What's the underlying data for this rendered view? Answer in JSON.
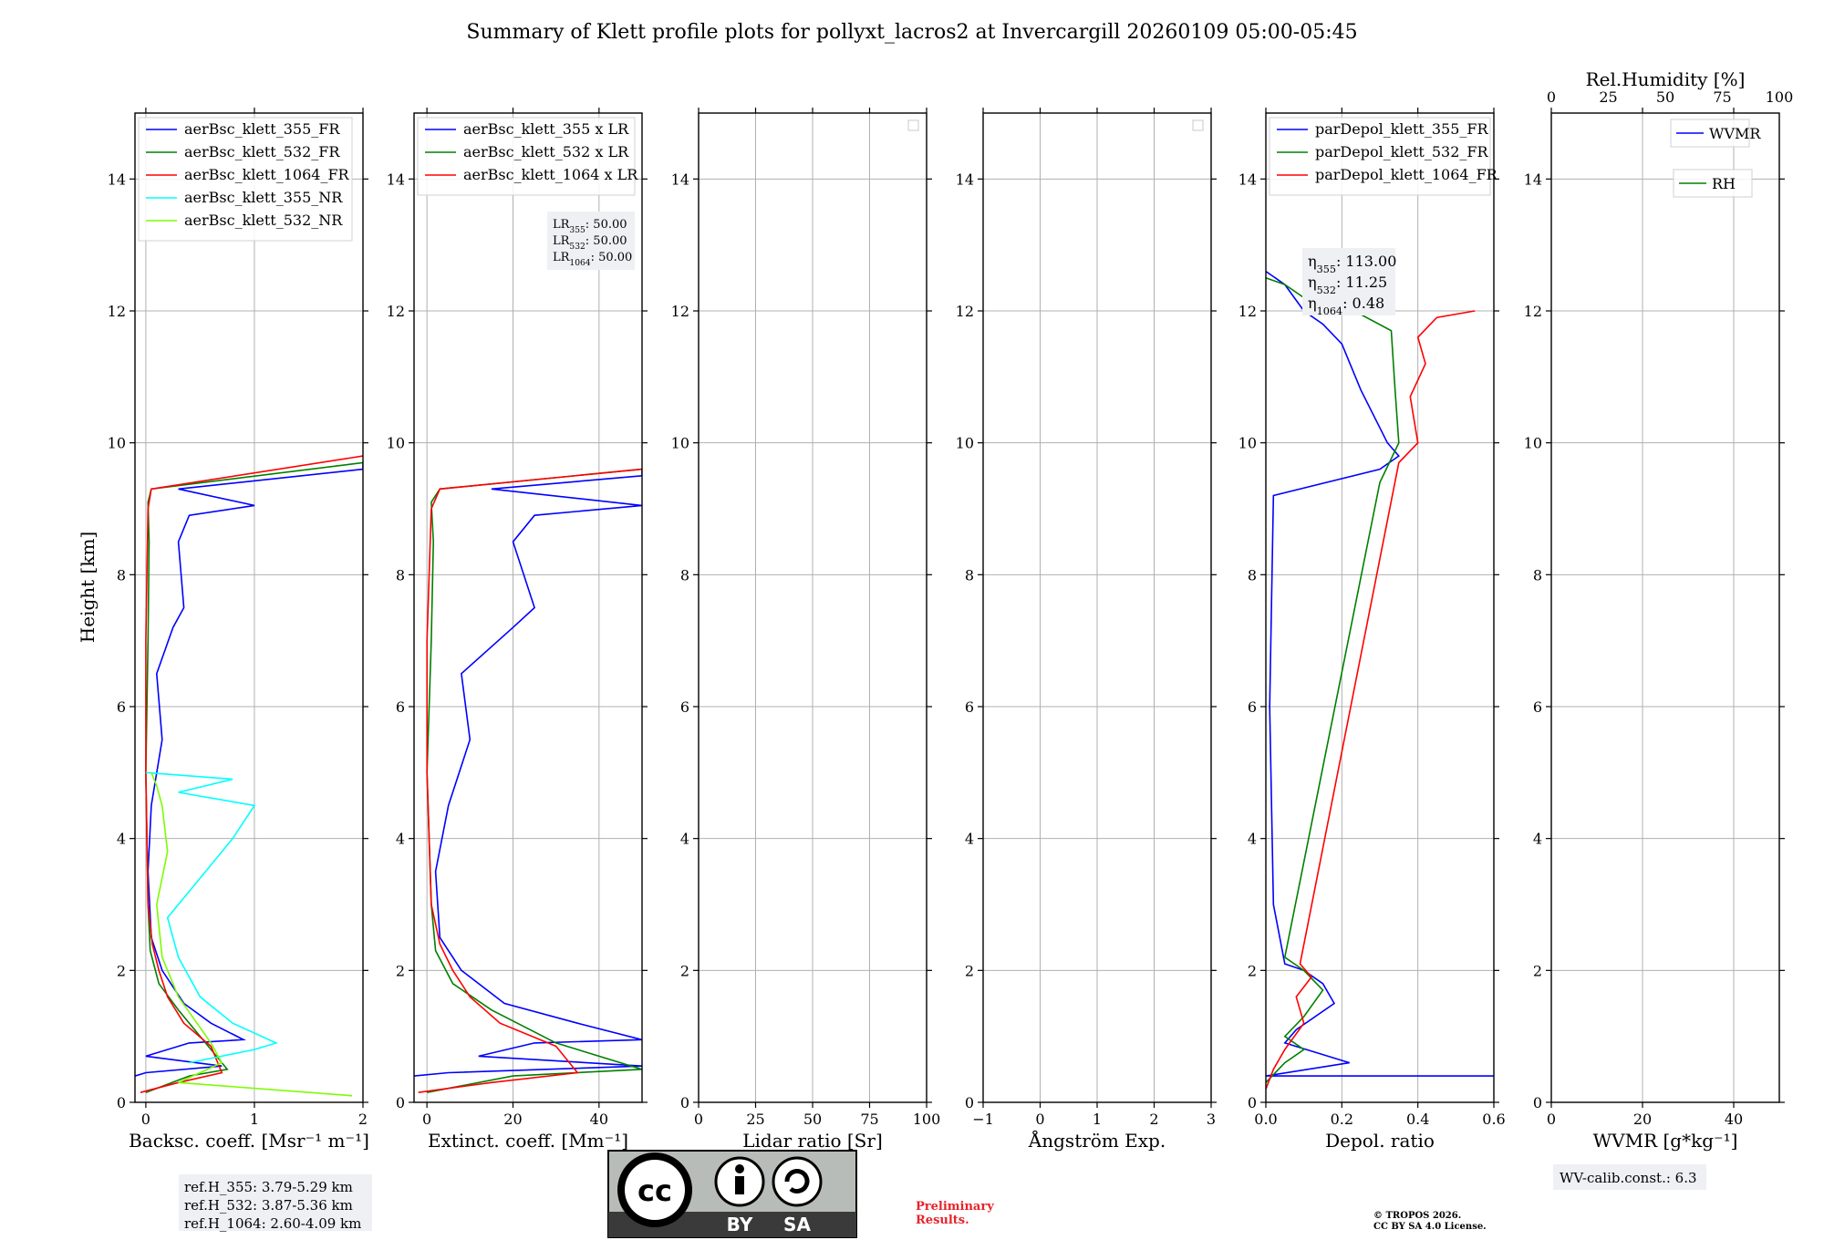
{
  "title": "Summary of Klett profile plots for pollyxt_lacros2 at Invercargill 20260109 05:00-05:45",
  "y_label": "Height [km]",
  "colors": {
    "c355": "#0000ff",
    "c532": "#008000",
    "c1064": "#ff0000",
    "c355nr": "#00ffff",
    "c532nr": "#7cfc00"
  },
  "chart_data": [
    {
      "type": "line",
      "panel": "backscatter",
      "xlabel": "Backsc. coeff. [Msr⁻¹ m⁻¹]",
      "xlim": [
        -0.1,
        2.0
      ],
      "xticks": [
        0,
        1,
        2
      ],
      "xtick_labels": [
        "0",
        "1",
        "2"
      ],
      "ylim": [
        0,
        15
      ],
      "yticks": [
        0,
        2,
        4,
        6,
        8,
        10,
        12,
        14
      ],
      "ytick_labels": [
        "0",
        "2",
        "4",
        "6",
        "8",
        "10",
        "12",
        "14"
      ],
      "legend": [
        "aerBsc_klett_355_FR",
        "aerBsc_klett_532_FR",
        "aerBsc_klett_1064_FR",
        "aerBsc_klett_355_NR",
        "aerBsc_klett_532_NR"
      ],
      "series": [
        {
          "name": "aerBsc_klett_355_FR",
          "color": "c355",
          "x": [
            -0.1,
            0.0,
            0.7,
            0.0,
            0.4,
            0.9,
            0.6,
            0.35,
            0.15,
            0.05,
            0.02,
            0.05,
            0.15,
            0.1,
            0.25,
            0.35,
            0.3,
            0.4,
            1.0,
            0.3,
            2.0,
            2.0
          ],
          "y": [
            0.4,
            0.45,
            0.55,
            0.7,
            0.9,
            0.95,
            1.2,
            1.5,
            2.0,
            2.5,
            3.5,
            4.5,
            5.5,
            6.5,
            7.2,
            7.5,
            8.5,
            8.9,
            9.05,
            9.3,
            9.6,
            9.7
          ]
        },
        {
          "name": "aerBsc_klett_532_FR",
          "color": "c532",
          "x": [
            0.0,
            0.4,
            0.75,
            0.55,
            0.3,
            0.12,
            0.04,
            0.02,
            0.0,
            0.02,
            0.03,
            0.02,
            0.05,
            2.0
          ],
          "y": [
            0.15,
            0.4,
            0.5,
            0.9,
            1.4,
            1.8,
            2.3,
            3.0,
            5.0,
            7.0,
            8.5,
            9.1,
            9.3,
            9.7
          ]
        },
        {
          "name": "aerBsc_klett_1064_FR",
          "color": "c1064",
          "x": [
            -0.05,
            0.3,
            0.7,
            0.6,
            0.35,
            0.2,
            0.12,
            0.06,
            0.02,
            0.0,
            0.0,
            0.02,
            0.05,
            2.0
          ],
          "y": [
            0.15,
            0.3,
            0.45,
            0.85,
            1.2,
            1.6,
            2.0,
            2.4,
            3.0,
            5.0,
            7.0,
            9.0,
            9.3,
            9.8
          ]
        },
        {
          "name": "aerBsc_klett_355_NR",
          "color": "c355nr",
          "x": [
            0.4,
            1.0,
            1.2,
            0.8,
            0.5,
            0.3,
            0.2,
            0.5,
            0.8,
            1.0,
            0.3,
            0.8,
            0.0
          ],
          "y": [
            0.6,
            0.8,
            0.9,
            1.2,
            1.6,
            2.2,
            2.8,
            3.4,
            4.0,
            4.5,
            4.7,
            4.9,
            5.0
          ]
        },
        {
          "name": "aerBsc_klett_532_NR",
          "color": "c532nr",
          "x": [
            1.9,
            0.3,
            0.5,
            0.7,
            0.6,
            0.3,
            0.15,
            0.1,
            0.2,
            0.15,
            0.1,
            0.05
          ],
          "y": [
            0.1,
            0.3,
            0.45,
            0.6,
            0.9,
            1.6,
            2.2,
            3.0,
            3.8,
            4.5,
            4.8,
            5.0
          ]
        }
      ],
      "annotation": [
        "ref.H_355: 3.79-5.29 km",
        "ref.H_532: 3.87-5.36 km",
        "ref.H_1064: 2.60-4.09 km"
      ]
    },
    {
      "type": "line",
      "panel": "extinction",
      "xlabel": "Extinct. coeff. [Mm⁻¹]",
      "xlim": [
        -3,
        50
      ],
      "xticks": [
        0,
        20,
        40
      ],
      "xtick_labels": [
        "0",
        "20",
        "40"
      ],
      "ylim": [
        0,
        15
      ],
      "yticks": [
        0,
        2,
        4,
        6,
        8,
        10,
        12,
        14
      ],
      "ytick_labels": [
        "0",
        "2",
        "4",
        "6",
        "8",
        "10",
        "12",
        "14"
      ],
      "legend": [
        "aerBsc_klett_355 x LR",
        "aerBsc_klett_532 x LR",
        "aerBsc_klett_1064 x LR"
      ],
      "series": [
        {
          "name": "aerBsc_klett_355 x LR",
          "color": "c355",
          "x": [
            -3,
            5,
            50,
            12,
            25,
            50,
            35,
            18,
            8,
            3,
            2,
            5,
            10,
            8,
            20,
            25,
            20,
            25,
            50,
            15,
            50,
            50
          ],
          "y": [
            0.4,
            0.45,
            0.55,
            0.7,
            0.9,
            0.95,
            1.2,
            1.5,
            2.0,
            2.5,
            3.5,
            4.5,
            5.5,
            6.5,
            7.2,
            7.5,
            8.5,
            8.9,
            9.05,
            9.3,
            9.5,
            9.6
          ]
        },
        {
          "name": "aerBsc_klett_532 x LR",
          "color": "c532",
          "x": [
            0,
            20,
            50,
            30,
            15,
            6,
            2,
            1,
            0,
            1,
            1.5,
            1,
            3,
            50
          ],
          "y": [
            0.15,
            0.4,
            0.5,
            0.9,
            1.4,
            1.8,
            2.3,
            3.0,
            5.0,
            7.0,
            8.5,
            9.1,
            9.3,
            9.6
          ]
        },
        {
          "name": "aerBsc_klett_1064 x LR",
          "color": "c1064",
          "x": [
            -2,
            15,
            35,
            30,
            17,
            10,
            6,
            3,
            1,
            0,
            0,
            1,
            3,
            50
          ],
          "y": [
            0.15,
            0.3,
            0.45,
            0.85,
            1.2,
            1.6,
            2.0,
            2.4,
            3.0,
            5.0,
            7.0,
            9.0,
            9.3,
            9.6
          ]
        }
      ],
      "annotation": [
        "LR355: 50.00",
        "LR532: 50.00",
        "LR1064: 50.00"
      ]
    },
    {
      "type": "line",
      "panel": "lidar_ratio",
      "xlabel": "Lidar ratio [Sr]",
      "xlim": [
        0,
        100
      ],
      "xticks": [
        0,
        25,
        50,
        75,
        100
      ],
      "xtick_labels": [
        "0",
        "25",
        "50",
        "75",
        "100"
      ],
      "ylim": [
        0,
        15
      ],
      "yticks": [
        0,
        2,
        4,
        6,
        8,
        10,
        12,
        14
      ],
      "ytick_labels": [
        "0",
        "2",
        "4",
        "6",
        "8",
        "10",
        "12",
        "14"
      ],
      "series": []
    },
    {
      "type": "line",
      "panel": "angstrom",
      "xlabel": "Ångström Exp.",
      "xlim": [
        -1,
        3
      ],
      "xticks": [
        -1,
        0,
        1,
        2,
        3
      ],
      "xtick_labels": [
        "−1",
        "0",
        "1",
        "2",
        "3"
      ],
      "ylim": [
        0,
        15
      ],
      "yticks": [
        0,
        2,
        4,
        6,
        8,
        10,
        12,
        14
      ],
      "ytick_labels": [
        "0",
        "2",
        "4",
        "6",
        "8",
        "10",
        "12",
        "14"
      ],
      "series": []
    },
    {
      "type": "line",
      "panel": "depol",
      "xlabel": "Depol. ratio",
      "xlim": [
        0,
        0.6
      ],
      "xticks": [
        0.0,
        0.2,
        0.4,
        0.6
      ],
      "xtick_labels": [
        "0.0",
        "0.2",
        "0.4",
        "0.6"
      ],
      "ylim": [
        0,
        15
      ],
      "yticks": [
        0,
        2,
        4,
        6,
        8,
        10,
        12,
        14
      ],
      "ytick_labels": [
        "0",
        "2",
        "4",
        "6",
        "8",
        "10",
        "12",
        "14"
      ],
      "legend": [
        "parDepol_klett_355_FR",
        "parDepol_klett_532_FR",
        "parDepol_klett_1064_FR"
      ],
      "series": [
        {
          "name": "parDepol_klett_355_FR",
          "color": "c355",
          "x": [
            0.6,
            0.0,
            0.22,
            0.05,
            0.08,
            0.18,
            0.15,
            0.1,
            0.05,
            0.02,
            0.01,
            0.02,
            0.3,
            0.35,
            0.32,
            0.25,
            0.2,
            0.15,
            0.1,
            0.05,
            0.0
          ],
          "y": [
            0.4,
            0.4,
            0.6,
            0.9,
            1.1,
            1.5,
            1.8,
            2.0,
            2.1,
            3.0,
            6.0,
            9.2,
            9.6,
            9.8,
            10.0,
            10.8,
            11.5,
            11.8,
            12.0,
            12.4,
            12.6
          ]
        },
        {
          "name": "parDepol_klett_532_FR",
          "color": "c532",
          "x": [
            0.0,
            0.05,
            0.1,
            0.05,
            0.1,
            0.15,
            0.1,
            0.05,
            0.3,
            0.35,
            0.34,
            0.33,
            0.2,
            0.1,
            0.05,
            0.0
          ],
          "y": [
            0.3,
            0.6,
            0.8,
            1.0,
            1.3,
            1.7,
            2.0,
            2.2,
            9.4,
            10.0,
            10.8,
            11.7,
            12.1,
            12.2,
            12.4,
            12.5
          ]
        },
        {
          "name": "parDepol_klett_1064_FR",
          "color": "c1064",
          "x": [
            0.0,
            0.02,
            0.05,
            0.1,
            0.08,
            0.12,
            0.09,
            0.35,
            0.4,
            0.38,
            0.42,
            0.4,
            0.45,
            0.55
          ],
          "y": [
            0.2,
            0.5,
            0.8,
            1.2,
            1.6,
            1.9,
            2.1,
            9.7,
            10.0,
            10.7,
            11.2,
            11.6,
            11.9,
            12.0
          ]
        }
      ],
      "annotation": [
        "η355: 113.00",
        "η532: 11.25",
        "η1064: 0.48"
      ]
    },
    {
      "type": "line",
      "panel": "wvmr",
      "xlabel": "WVMR [g*kg⁻¹]",
      "xlim": [
        0,
        50
      ],
      "xticks": [
        0,
        20,
        40
      ],
      "xtick_labels": [
        "0",
        "20",
        "40"
      ],
      "top_xlabel": "Rel.Humidity [%]",
      "top_xlim": [
        0,
        100
      ],
      "top_xticks": [
        0,
        25,
        50,
        75,
        100
      ],
      "top_xtick_labels": [
        "0",
        "25",
        "50",
        "75",
        "100"
      ],
      "ylim": [
        0,
        15
      ],
      "yticks": [
        0,
        2,
        4,
        6,
        8,
        10,
        12,
        14
      ],
      "ytick_labels": [
        "0",
        "2",
        "4",
        "6",
        "8",
        "10",
        "12",
        "14"
      ],
      "legend": [
        "WVMR",
        "RH"
      ],
      "series": [],
      "annotation": [
        "WV-calib.const.: 6.3"
      ]
    }
  ],
  "footer": {
    "license_badge": {
      "cc": "cc",
      "by": "BY",
      "sa": "SA"
    },
    "preliminary": "Preliminary Results.",
    "copyright_line1": "© TROPOS 2026.",
    "copyright_line2": "CC BY SA 4.0 License."
  }
}
